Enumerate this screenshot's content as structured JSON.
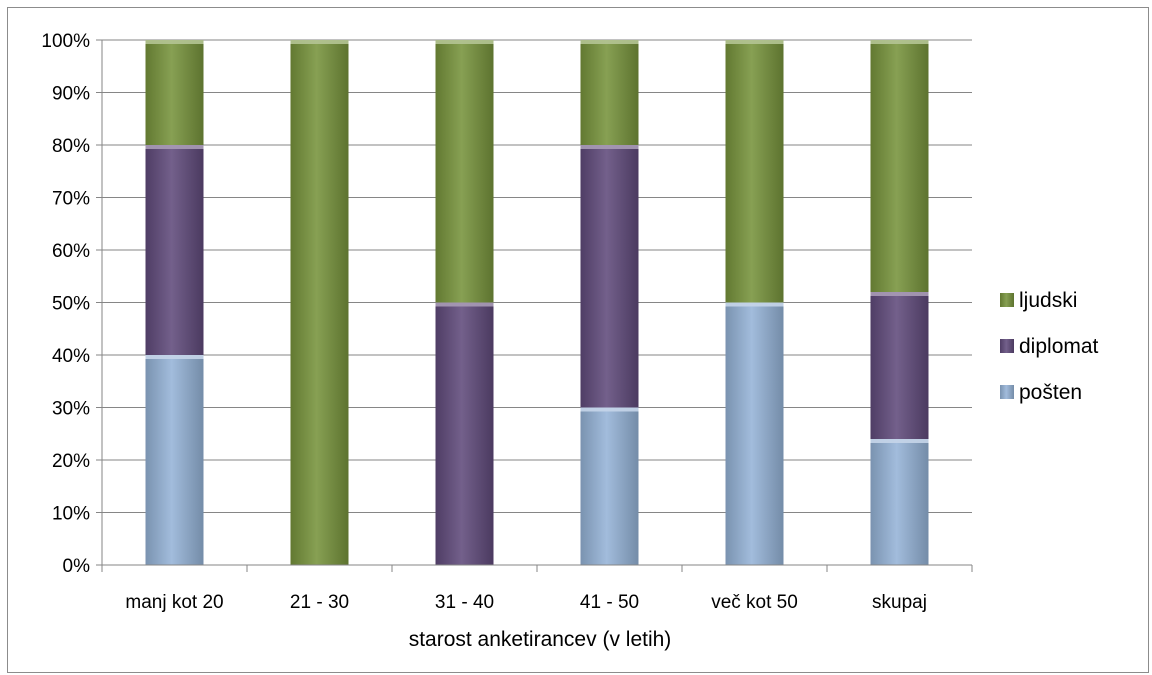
{
  "chart_data": {
    "type": "bar",
    "stacked": true,
    "normalized": true,
    "categories": [
      "manj kot 20",
      "21 - 30",
      "31 - 40",
      "41 - 50",
      "več kot 50",
      "skupaj"
    ],
    "series": [
      {
        "name": "pošten",
        "color": "#95b3d7",
        "values": [
          40,
          0,
          0,
          30,
          50,
          24
        ]
      },
      {
        "name": "diplomat",
        "color": "#604a7b",
        "values": [
          40,
          0,
          50,
          50,
          0,
          28
        ]
      },
      {
        "name": "ljudski",
        "color": "#77933c",
        "values": [
          20,
          100,
          50,
          20,
          50,
          48
        ]
      }
    ],
    "y_ticks": [
      "0%",
      "10%",
      "20%",
      "30%",
      "40%",
      "50%",
      "60%",
      "70%",
      "80%",
      "90%",
      "100%"
    ],
    "xlabel": "starost anketirancev (v letih)",
    "ylabel": "",
    "ylim": [
      0,
      100
    ],
    "grid": true,
    "legend_position": "right",
    "legend_order": [
      "ljudski",
      "diplomat",
      "pošten"
    ]
  }
}
